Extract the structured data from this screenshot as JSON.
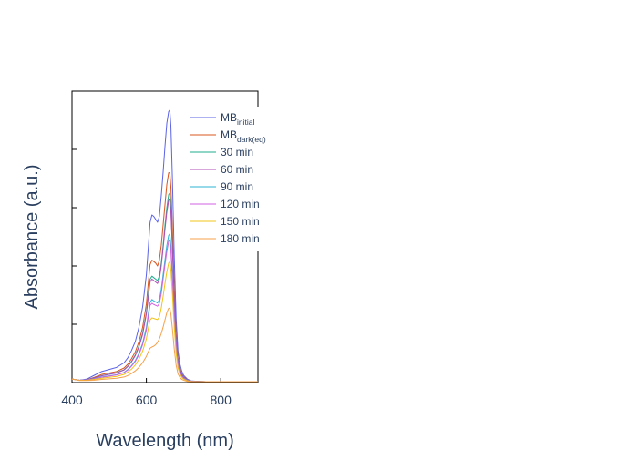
{
  "chart_data": {
    "type": "line",
    "xlabel": "Wavelength (nm)",
    "ylabel": "Absorbance (a.u.)",
    "xlim": [
      400,
      900
    ],
    "ylim": [
      0,
      1.0
    ],
    "xticks": [
      400,
      600,
      800
    ],
    "xtick_labels": [
      "400",
      "600",
      "800"
    ],
    "y_tick_marks": [
      0.2,
      0.4,
      0.6,
      0.8
    ],
    "grid": false,
    "legend_position": "top-right",
    "x": [
      400,
      420,
      440,
      460,
      480,
      500,
      520,
      540,
      550,
      560,
      570,
      580,
      590,
      600,
      605,
      610,
      615,
      620,
      625,
      630,
      635,
      640,
      645,
      650,
      655,
      660,
      663,
      666,
      670,
      675,
      680,
      685,
      690,
      695,
      700,
      710,
      720,
      740,
      760,
      800,
      850,
      900
    ],
    "series": [
      {
        "name": "MB",
        "subscript": "initial",
        "color": "#5b63e6",
        "values": [
          0.012,
          0.008,
          0.012,
          0.025,
          0.038,
          0.045,
          0.052,
          0.068,
          0.085,
          0.11,
          0.14,
          0.19,
          0.26,
          0.37,
          0.46,
          0.55,
          0.575,
          0.57,
          0.56,
          0.55,
          0.57,
          0.64,
          0.72,
          0.81,
          0.89,
          0.93,
          0.935,
          0.88,
          0.7,
          0.43,
          0.22,
          0.11,
          0.065,
          0.04,
          0.025,
          0.012,
          0.006,
          0.004,
          0.003,
          0.003,
          0.003,
          0.003
        ]
      },
      {
        "name": "MB",
        "subscript": "dark(eq)",
        "color": "#d9541f",
        "values": [
          0.012,
          0.008,
          0.01,
          0.018,
          0.028,
          0.033,
          0.038,
          0.05,
          0.063,
          0.082,
          0.105,
          0.14,
          0.19,
          0.27,
          0.34,
          0.405,
          0.42,
          0.415,
          0.41,
          0.4,
          0.42,
          0.47,
          0.54,
          0.61,
          0.68,
          0.72,
          0.72,
          0.67,
          0.53,
          0.33,
          0.17,
          0.085,
          0.05,
          0.03,
          0.02,
          0.01,
          0.005,
          0.004,
          0.003,
          0.003,
          0.003,
          0.003
        ]
      },
      {
        "name": "30 min",
        "color": "#1fae8f",
        "values": [
          0.012,
          0.008,
          0.01,
          0.016,
          0.024,
          0.029,
          0.034,
          0.044,
          0.056,
          0.073,
          0.094,
          0.125,
          0.17,
          0.24,
          0.3,
          0.355,
          0.365,
          0.36,
          0.355,
          0.35,
          0.365,
          0.41,
          0.47,
          0.54,
          0.6,
          0.645,
          0.65,
          0.6,
          0.47,
          0.29,
          0.15,
          0.075,
          0.045,
          0.028,
          0.018,
          0.009,
          0.005,
          0.004,
          0.003,
          0.003,
          0.003,
          0.003
        ]
      },
      {
        "name": "60 min",
        "color": "#b04eb7",
        "values": [
          0.012,
          0.008,
          0.01,
          0.016,
          0.023,
          0.028,
          0.033,
          0.043,
          0.055,
          0.071,
          0.092,
          0.122,
          0.165,
          0.235,
          0.29,
          0.345,
          0.355,
          0.35,
          0.345,
          0.34,
          0.355,
          0.4,
          0.46,
          0.525,
          0.585,
          0.625,
          0.63,
          0.585,
          0.46,
          0.285,
          0.145,
          0.073,
          0.044,
          0.027,
          0.018,
          0.009,
          0.005,
          0.004,
          0.003,
          0.003,
          0.003,
          0.003
        ]
      },
      {
        "name": "90 min",
        "color": "#2eb6d6",
        "values": [
          0.012,
          0.008,
          0.009,
          0.013,
          0.019,
          0.023,
          0.027,
          0.035,
          0.045,
          0.058,
          0.075,
          0.1,
          0.135,
          0.19,
          0.235,
          0.275,
          0.285,
          0.28,
          0.277,
          0.273,
          0.285,
          0.32,
          0.37,
          0.42,
          0.47,
          0.505,
          0.51,
          0.47,
          0.37,
          0.23,
          0.12,
          0.06,
          0.036,
          0.022,
          0.015,
          0.008,
          0.004,
          0.003,
          0.003,
          0.003,
          0.003,
          0.003
        ]
      },
      {
        "name": "120 min",
        "color": "#d262e0",
        "values": [
          0.012,
          0.008,
          0.009,
          0.012,
          0.018,
          0.022,
          0.026,
          0.034,
          0.043,
          0.056,
          0.072,
          0.096,
          0.13,
          0.18,
          0.225,
          0.265,
          0.272,
          0.268,
          0.265,
          0.262,
          0.272,
          0.305,
          0.355,
          0.405,
          0.45,
          0.485,
          0.49,
          0.45,
          0.355,
          0.22,
          0.115,
          0.058,
          0.035,
          0.021,
          0.014,
          0.007,
          0.004,
          0.003,
          0.003,
          0.003,
          0.003,
          0.003
        ]
      },
      {
        "name": "150 min",
        "color": "#f0c419",
        "values": [
          0.012,
          0.008,
          0.008,
          0.011,
          0.015,
          0.018,
          0.021,
          0.028,
          0.036,
          0.046,
          0.06,
          0.08,
          0.108,
          0.15,
          0.185,
          0.215,
          0.222,
          0.22,
          0.218,
          0.216,
          0.225,
          0.255,
          0.295,
          0.34,
          0.38,
          0.41,
          0.415,
          0.385,
          0.305,
          0.19,
          0.1,
          0.05,
          0.03,
          0.018,
          0.012,
          0.006,
          0.004,
          0.003,
          0.003,
          0.003,
          0.003,
          0.003
        ]
      },
      {
        "name": "180 min",
        "color": "#f5a04a",
        "values": [
          0.012,
          0.007,
          0.007,
          0.008,
          0.011,
          0.013,
          0.015,
          0.019,
          0.024,
          0.031,
          0.04,
          0.052,
          0.068,
          0.09,
          0.105,
          0.118,
          0.122,
          0.125,
          0.13,
          0.138,
          0.15,
          0.168,
          0.19,
          0.215,
          0.24,
          0.255,
          0.255,
          0.235,
          0.185,
          0.115,
          0.06,
          0.03,
          0.018,
          0.011,
          0.008,
          0.004,
          0.003,
          0.003,
          0.003,
          0.003,
          0.003,
          0.003
        ]
      }
    ]
  }
}
